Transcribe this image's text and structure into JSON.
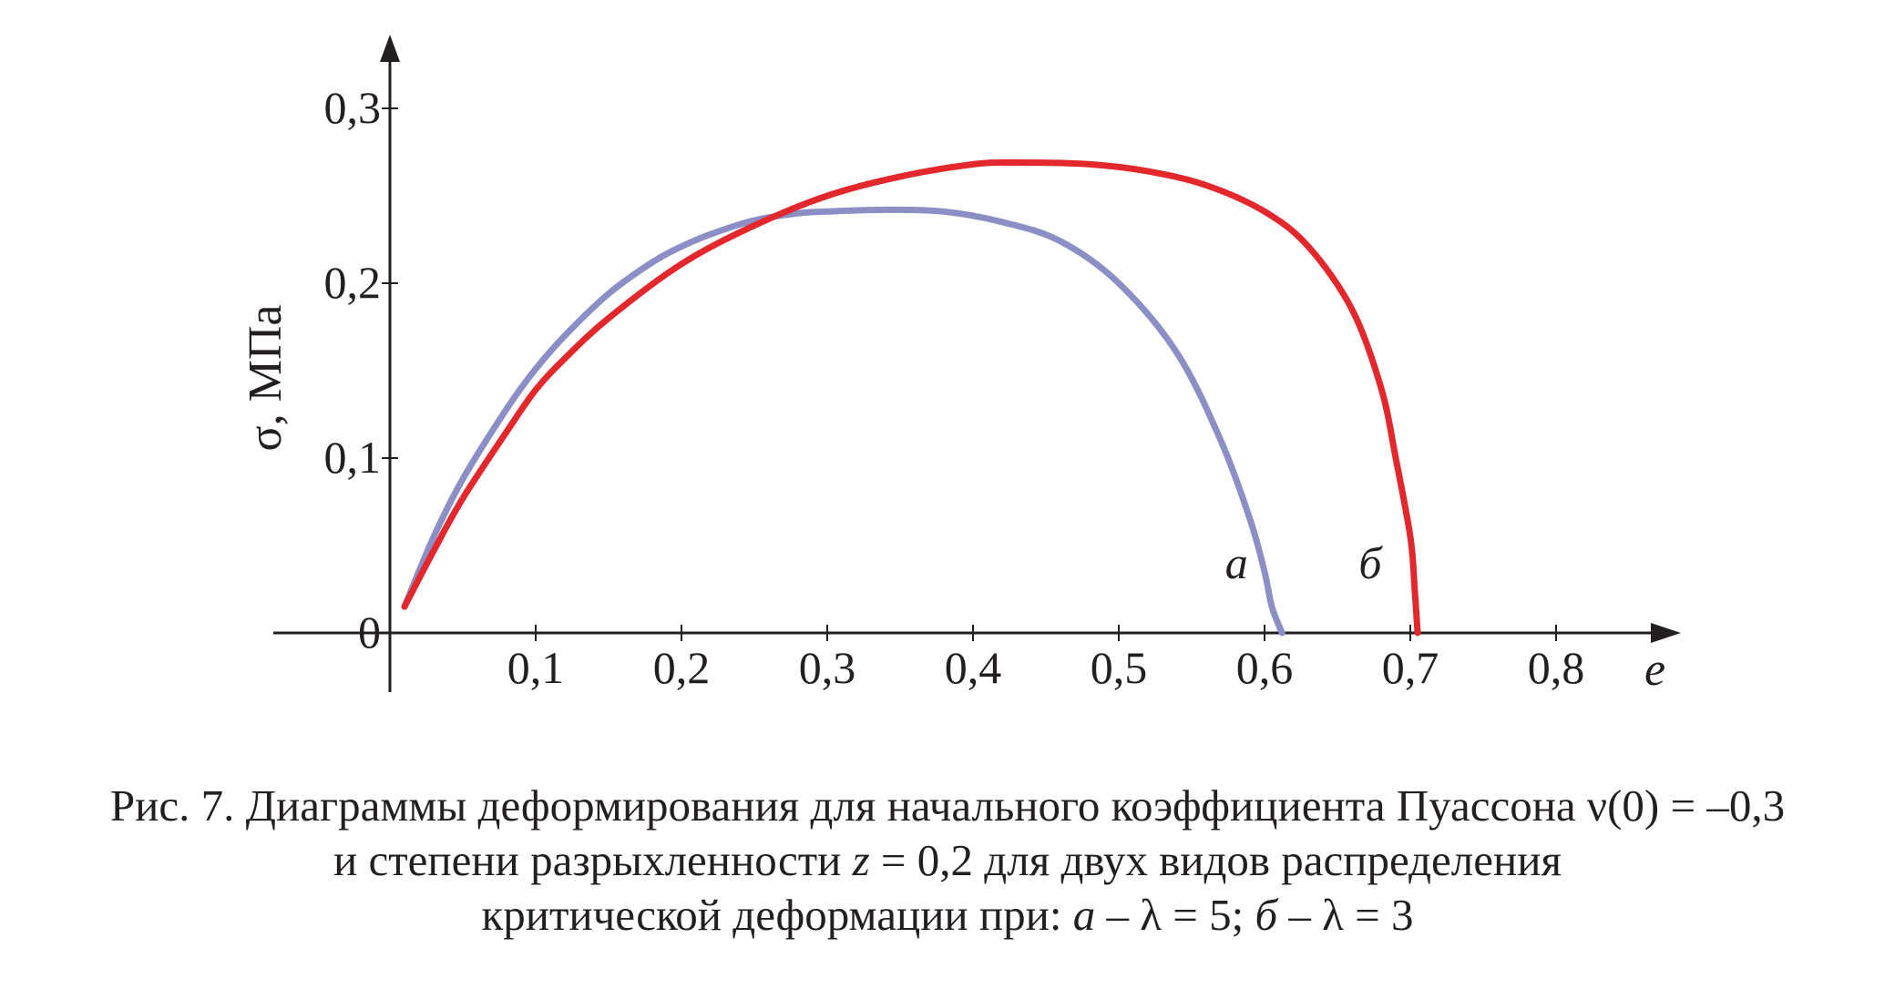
{
  "chart_data": {
    "type": "line",
    "xlabel": "e",
    "ylabel": "σ, МПа",
    "xlim": [
      0,
      0.88
    ],
    "ylim": [
      0,
      0.32
    ],
    "x_ticks": [
      "0,1",
      "0,2",
      "0,3",
      "0,4",
      "0,5",
      "0,6",
      "0,7",
      "0,8"
    ],
    "y_ticks": [
      "0",
      "0,1",
      "0,2",
      "0,3"
    ],
    "grid": false,
    "series": [
      {
        "name": "а",
        "color": "#8b8fc6",
        "x": [
          0.01,
          0.03,
          0.05,
          0.08,
          0.1,
          0.12,
          0.15,
          0.18,
          0.2,
          0.22,
          0.25,
          0.28,
          0.3,
          0.34,
          0.38,
          0.42,
          0.46,
          0.5,
          0.54,
          0.57,
          0.59,
          0.6,
          0.605,
          0.612
        ],
        "y": [
          0.015,
          0.055,
          0.088,
          0.128,
          0.151,
          0.17,
          0.194,
          0.212,
          0.221,
          0.228,
          0.236,
          0.24,
          0.241,
          0.242,
          0.241,
          0.235,
          0.224,
          0.2,
          0.16,
          0.11,
          0.065,
          0.035,
          0.015,
          0.0
        ]
      },
      {
        "name": "б",
        "color": "#e2282c",
        "x": [
          0.01,
          0.03,
          0.05,
          0.08,
          0.1,
          0.12,
          0.15,
          0.2,
          0.25,
          0.3,
          0.35,
          0.4,
          0.43,
          0.48,
          0.52,
          0.56,
          0.6,
          0.63,
          0.66,
          0.68,
          0.69,
          0.7,
          0.703,
          0.705
        ],
        "y": [
          0.015,
          0.047,
          0.077,
          0.115,
          0.139,
          0.157,
          0.18,
          0.211,
          0.233,
          0.25,
          0.261,
          0.268,
          0.269,
          0.268,
          0.264,
          0.256,
          0.241,
          0.221,
          0.185,
          0.14,
          0.1,
          0.055,
          0.025,
          0.0
        ]
      }
    ]
  },
  "caption": {
    "line1": "Рис. 7. Диаграммы деформирования для начального коэффициента Пуассона ν(0) = –0,3",
    "line2_a": "и степени разрыхленности ",
    "line2_z": "z",
    "line2_b": " = 0,2 для двух видов распределения",
    "line3_a": "критической деформации при: ",
    "line3_ia": "а",
    "line3_b": " – λ = 5; ",
    "line3_ib": "б",
    "line3_c": " – λ = 3"
  }
}
